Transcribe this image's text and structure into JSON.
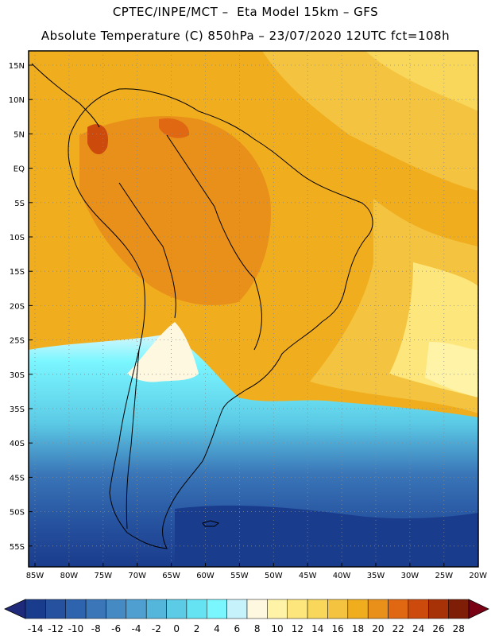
{
  "header": {
    "title_line1": "CPTEC/INPE/MCT –  Eta Model 15km – GFS",
    "title_line2": "Absolute Temperature (C) 850hPa – 23/07/2020 12UTC fct=108h"
  },
  "map": {
    "lat_labels": [
      "15N",
      "10N",
      "5N",
      "EQ",
      "5S",
      "10S",
      "15S",
      "20S",
      "25S",
      "30S",
      "35S",
      "40S",
      "45S",
      "50S",
      "55S"
    ],
    "lon_labels": [
      "85W",
      "80W",
      "75W",
      "70W",
      "65W",
      "60W",
      "55W",
      "50W",
      "45W",
      "40W",
      "35W",
      "30W",
      "25W",
      "20W"
    ]
  },
  "colorbar": {
    "labels": [
      "-14",
      "-12",
      "-10",
      "-8",
      "-6",
      "-4",
      "-2",
      "0",
      "2",
      "4",
      "6",
      "8",
      "10",
      "12",
      "14",
      "16",
      "18",
      "20",
      "22",
      "24",
      "26",
      "28"
    ],
    "colors": [
      "#1a3c8c",
      "#25519e",
      "#2e63ad",
      "#3a76b8",
      "#468ac4",
      "#4f9fd0",
      "#55b6dc",
      "#5ccbe6",
      "#66e3f2",
      "#7af6ff",
      "#c6f3fb",
      "#fff8e0",
      "#fff3a8",
      "#fde67b",
      "#f9d75b",
      "#f4c440",
      "#f0ad1e",
      "#e8901a",
      "#e06812",
      "#cc4a0c",
      "#a83208",
      "#7e1e06"
    ],
    "low_arrow_color": "#1f2a7a",
    "high_arrow_color": "#7a0014"
  }
}
